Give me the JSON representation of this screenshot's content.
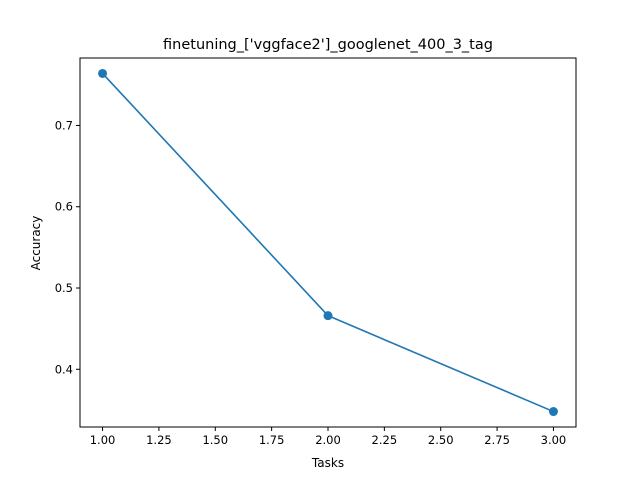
{
  "chart_data": {
    "type": "line",
    "title": "finetuning_['vggface2']_googlenet_400_3_tag",
    "xlabel": "Tasks",
    "ylabel": "Accuracy",
    "x": [
      1.0,
      2.0,
      3.0
    ],
    "series": [
      {
        "values": [
          0.764,
          0.466,
          0.348
        ],
        "color": "#1f77b4",
        "marker": "circle"
      }
    ],
    "xlim": [
      0.9,
      3.1
    ],
    "ylim": [
      0.329,
      0.783
    ],
    "xticks": [
      1.0,
      1.25,
      1.5,
      1.75,
      2.0,
      2.25,
      2.5,
      2.75,
      3.0
    ],
    "xtick_labels": [
      "1.00",
      "1.25",
      "1.50",
      "1.75",
      "2.00",
      "2.25",
      "2.50",
      "2.75",
      "3.00"
    ],
    "yticks": [
      0.4,
      0.5,
      0.6,
      0.7
    ],
    "ytick_labels": [
      "0.4",
      "0.5",
      "0.6",
      "0.7"
    ],
    "grid": false,
    "legend": "none"
  }
}
